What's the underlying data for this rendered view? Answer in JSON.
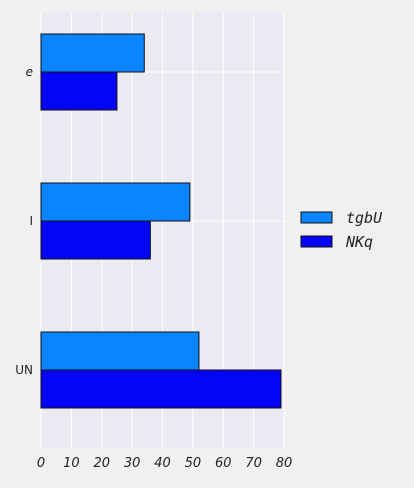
{
  "chart_data": {
    "type": "bar",
    "orientation": "horizontal",
    "categories": [
      "e",
      "I",
      "UN"
    ],
    "categories_italic": [
      true,
      false,
      false
    ],
    "series": [
      {
        "name": "tgbU",
        "color": "#0a84ff",
        "values": [
          34,
          49,
          52
        ]
      },
      {
        "name": "NKq",
        "color": "#0505f5",
        "values": [
          25,
          36,
          79
        ]
      }
    ],
    "xlim": [
      0,
      80
    ],
    "xticks": [
      "0",
      "10",
      "20",
      "30",
      "40",
      "50",
      "60",
      "70",
      "80"
    ],
    "xtick_values": [
      0,
      10,
      20,
      30,
      40,
      50,
      60,
      70,
      80
    ],
    "grid": true,
    "legend": "right",
    "title": "",
    "xlabel": "",
    "ylabel": "",
    "colors": {
      "plot_background": "#eaeaf2",
      "grid": "#ffffff",
      "bar_edge": "#111111"
    }
  }
}
